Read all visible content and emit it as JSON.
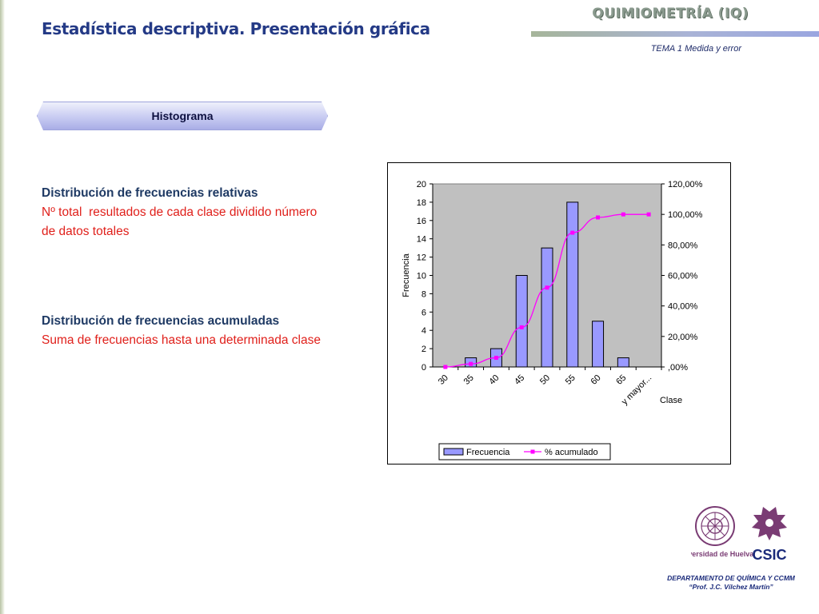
{
  "header": {
    "title": "Estadística descriptiva. Presentación gráfica",
    "brand": "QUIMIOMETRÍA (IQ)",
    "subtitle": "TEMA 1 Medida y error"
  },
  "section_tab": "Histograma",
  "blocks": [
    {
      "heading": "Distribución de frecuencias relativas",
      "text": "Nº total  resultados de cada clase dividido número de datos totales"
    },
    {
      "heading": "Distribución de frecuencias acumuladas",
      "text": "Suma de frecuencias hasta una determinada clase"
    }
  ],
  "footer": {
    "line1": "DEPARTAMENTO DE QUÍMICA Y CCMM",
    "line2": "“Prof. J.C. Vílchez Martín”",
    "logo_left": "Universidad de Huelva",
    "logo_right": "CSIC"
  },
  "colors": {
    "title": "#243a86",
    "bar_fill": "#9999ff",
    "line": "#ff00ff",
    "plot_bg": "#c0c0c0",
    "red_text": "#e0201b"
  },
  "chart_data": {
    "type": "bar",
    "categories": [
      "30",
      "35",
      "40",
      "45",
      "50",
      "55",
      "60",
      "65",
      "y mayor..."
    ],
    "series": [
      {
        "name": "Frecuencia",
        "type": "bar",
        "axis": "left",
        "values": [
          0,
          1,
          2,
          10,
          13,
          18,
          5,
          1,
          0
        ]
      },
      {
        "name": "% acumulado",
        "type": "line",
        "axis": "right",
        "values": [
          0.0,
          2.0,
          6.0,
          26.0,
          52.0,
          88.0,
          98.0,
          100.0,
          100.0
        ]
      }
    ],
    "xlabel": "Clase",
    "ylabel": "Frecuencia",
    "ylim": [
      0,
      20
    ],
    "yticks": [
      "0",
      "2",
      "4",
      "6",
      "8",
      "10",
      "12",
      "14",
      "16",
      "18",
      "20"
    ],
    "y2lim": [
      0,
      120
    ],
    "y2ticks": [
      ",00%",
      "20,00%",
      "40,00%",
      "60,00%",
      "80,00%",
      "100,00%",
      "120,00%"
    ],
    "grid": false,
    "legend": "bottom"
  }
}
